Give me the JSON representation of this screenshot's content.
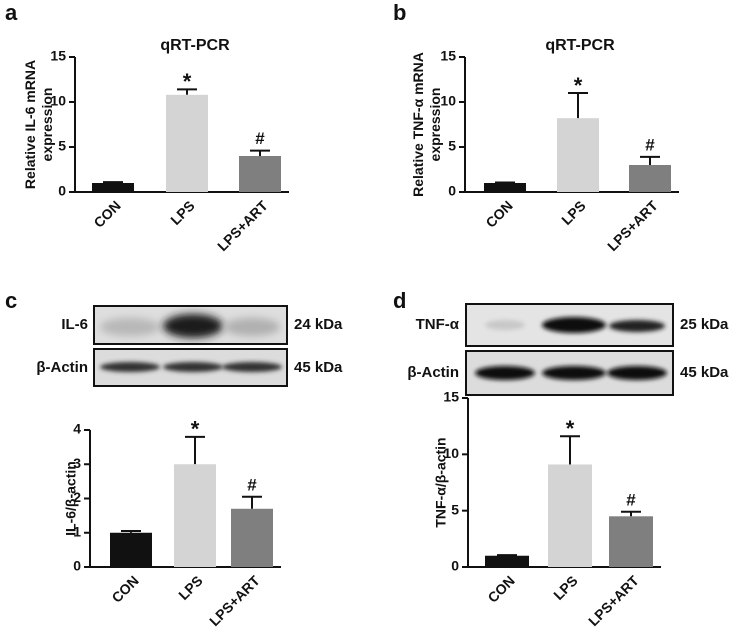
{
  "chart_data": [
    {
      "type": "bar",
      "panel": "a",
      "title": "qRT-PCR",
      "y_label": [
        "Relative IL-6 mRNA",
        "expression"
      ],
      "categories": [
        "CON",
        "LPS",
        "LPS+ART"
      ],
      "values": [
        1.0,
        10.8,
        4.0
      ],
      "errors": [
        0.1,
        0.6,
        0.6
      ],
      "annotations": [
        null,
        "*",
        "#"
      ],
      "colors": [
        "#111111",
        "#d4d4d4",
        "#7f7f7f"
      ],
      "ylim": [
        0,
        15
      ],
      "yticks": [
        0,
        5,
        10,
        15
      ]
    },
    {
      "type": "bar",
      "panel": "b",
      "title": "qRT-PCR",
      "y_label": [
        "Relative TNF-α  mRNA",
        "expression"
      ],
      "categories": [
        "CON",
        "LPS",
        "LPS+ART"
      ],
      "values": [
        1.0,
        8.2,
        3.0
      ],
      "errors": [
        0.05,
        2.8,
        0.9
      ],
      "annotations": [
        null,
        "*",
        "#"
      ],
      "colors": [
        "#111111",
        "#d4d4d4",
        "#7f7f7f"
      ],
      "ylim": [
        0,
        15
      ],
      "yticks": [
        0,
        5,
        10,
        15
      ]
    },
    {
      "type": "bar",
      "panel": "c",
      "y_label": [
        "IL-6/β-actin"
      ],
      "blots": [
        {
          "label": "IL-6",
          "size": "24 kDa"
        },
        {
          "label": "β-Actin",
          "size": "45 kDa"
        }
      ],
      "categories": [
        "CON",
        "LPS",
        "LPS+ART"
      ],
      "values": [
        1.0,
        3.0,
        1.7
      ],
      "errors": [
        0.05,
        0.8,
        0.35
      ],
      "annotations": [
        null,
        "*",
        "#"
      ],
      "colors": [
        "#111111",
        "#d4d4d4",
        "#7f7f7f"
      ],
      "ylim": [
        0,
        4
      ],
      "yticks": [
        0,
        1,
        2,
        3,
        4
      ]
    },
    {
      "type": "bar",
      "panel": "d",
      "y_label": [
        "TNF-α/β-actin"
      ],
      "blots": [
        {
          "label": "TNF-α",
          "size": "25 kDa"
        },
        {
          "label": "β-Actin",
          "size": "45 kDa"
        }
      ],
      "categories": [
        "CON",
        "LPS",
        "LPS+ART"
      ],
      "values": [
        1.0,
        9.1,
        4.5
      ],
      "errors": [
        0.05,
        2.5,
        0.4
      ],
      "annotations": [
        null,
        "*",
        "#"
      ],
      "colors": [
        "#111111",
        "#d4d4d4",
        "#7f7f7f"
      ],
      "ylim": [
        0,
        15
      ],
      "yticks": [
        0,
        5,
        10,
        15
      ]
    }
  ]
}
